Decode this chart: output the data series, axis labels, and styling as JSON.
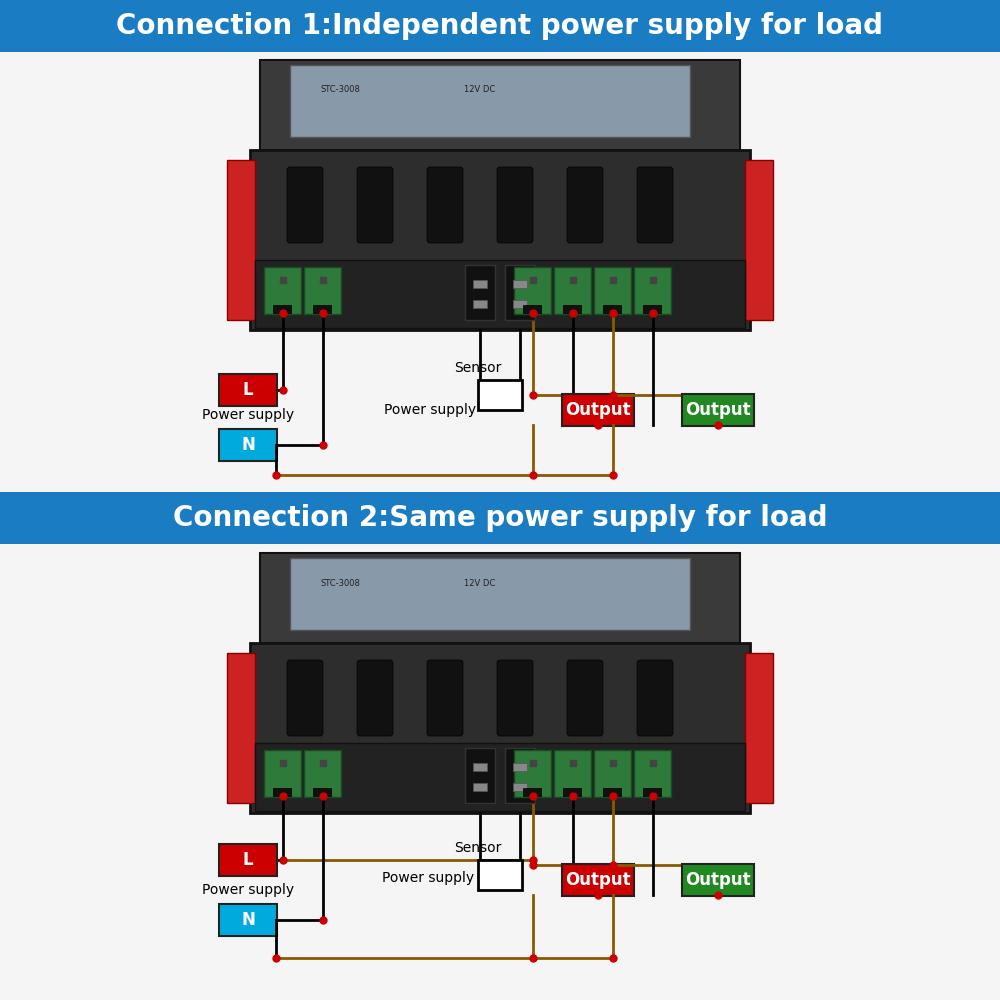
{
  "title1": "Connection 1:Independent power supply for load",
  "title2": "Connection 2:Same power supply for load",
  "title_bg": "#1a7dc4",
  "title_color": "white",
  "title_fontsize": 20,
  "bg_color": "#f0f0f0",
  "label_L": "L",
  "label_N": "N",
  "label_output": "Output",
  "label_sensor": "Sensor",
  "label_power_supply": "Power supply",
  "color_L_box": "#cc0000",
  "color_N_box": "#00aadd",
  "color_output1_box": "#cc0000",
  "color_output2_box": "#228822",
  "wire_color_main": "black",
  "wire_color_brown": "#8B5A00",
  "dot_color": "#cc0000",
  "box_text_color": "white",
  "device_body_color": "#2d2d2d",
  "device_top_color": "#222222",
  "red_cap_color": "#cc2222",
  "terminal_green": "#2d7a3a",
  "slot_color": "#111111",
  "fig_bg": "#f5f5f5"
}
